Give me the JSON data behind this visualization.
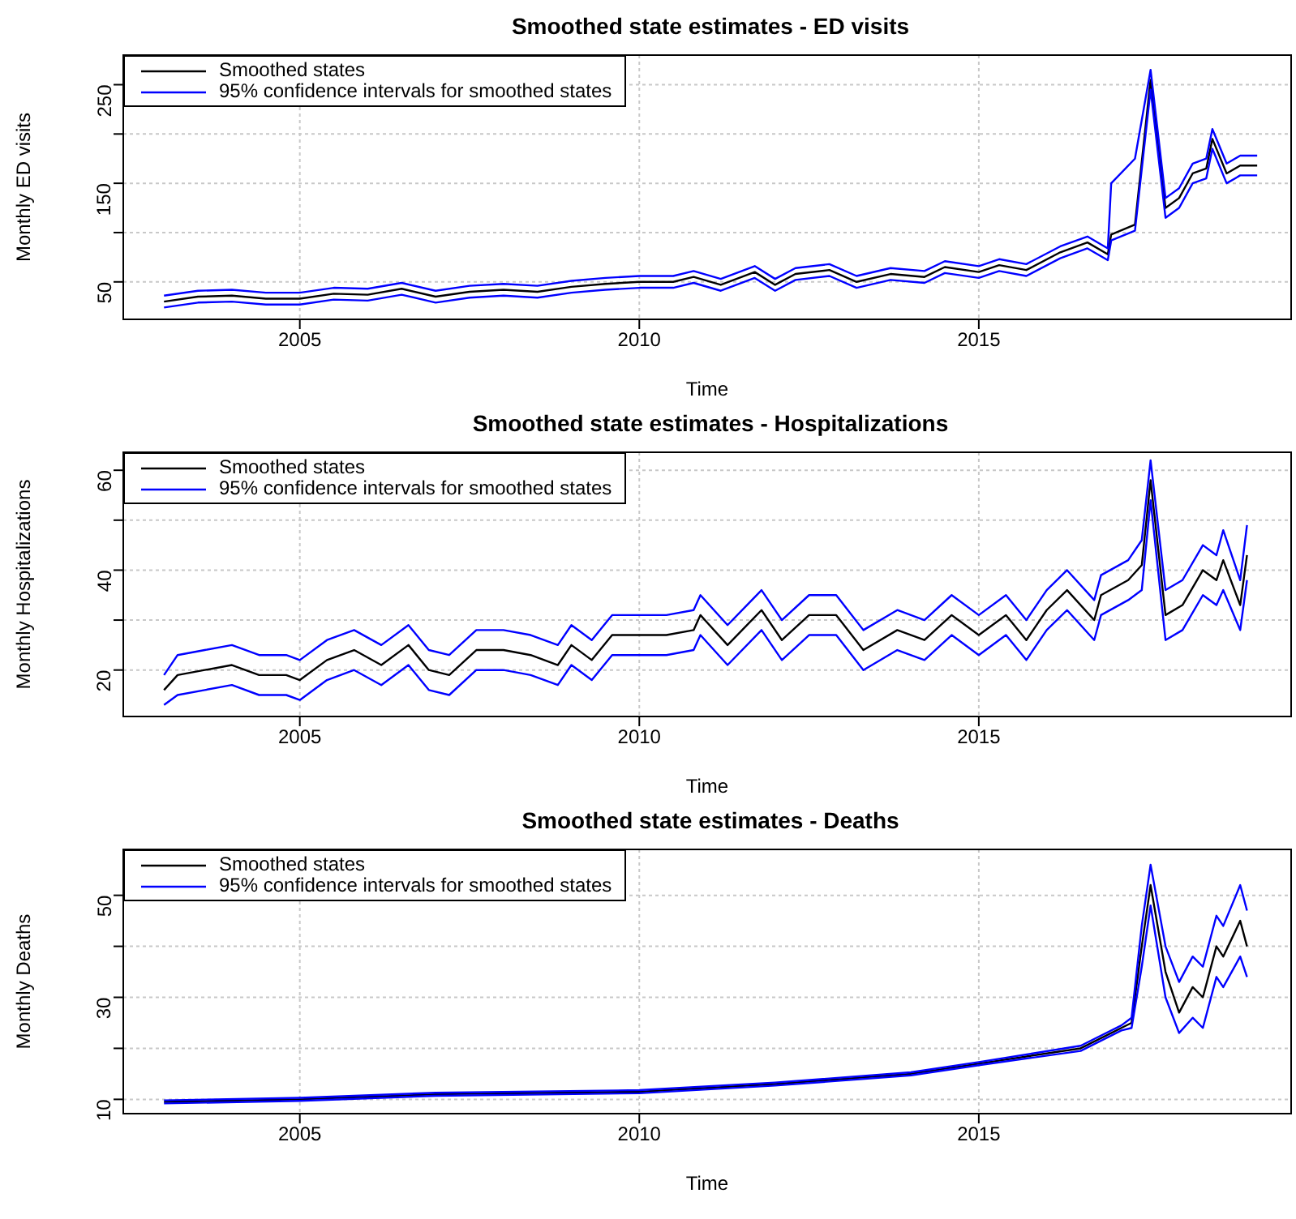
{
  "chart_data": [
    {
      "type": "line",
      "title": "Smoothed state estimates - ED visits",
      "xlabel": "Time",
      "ylabel": "Monthly ED visits",
      "legend": "top left",
      "grid": true,
      "line_style": "solid",
      "xlim": [
        2002.4,
        2019.6
      ],
      "xticks": [
        2005,
        2010,
        2015
      ],
      "ylim": [
        12,
        280
      ],
      "yticks": [
        50,
        {
          "value": 100,
          "label": null
        },
        150,
        {
          "value": 200,
          "label": null
        },
        250
      ],
      "x": [
        2003.0,
        2003.5,
        2004.0,
        2004.5,
        2005.0,
        2005.5,
        2006.0,
        2006.5,
        2007.0,
        2007.5,
        2008.0,
        2008.5,
        2009.0,
        2009.5,
        2010.0,
        2010.5,
        2010.8,
        2011.2,
        2011.7,
        2012.0,
        2012.3,
        2012.8,
        2013.2,
        2013.7,
        2014.2,
        2014.5,
        2015.0,
        2015.3,
        2015.7,
        2016.2,
        2016.6,
        2016.9,
        2016.95,
        2017.3,
        2017.53,
        2017.75,
        2017.95,
        2018.15,
        2018.35,
        2018.44,
        2018.65,
        2018.85,
        2019.1
      ],
      "series": [
        {
          "name": "Smoothed states",
          "color": "#000000",
          "values": [
            30,
            35,
            36,
            33,
            33,
            38,
            37,
            43,
            35,
            40,
            42,
            40,
            45,
            48,
            50,
            50,
            55,
            47,
            60,
            47,
            58,
            62,
            50,
            58,
            55,
            65,
            60,
            67,
            62,
            80,
            90,
            78,
            98,
            108,
            255,
            125,
            135,
            160,
            165,
            195,
            160,
            168,
            168
          ]
        },
        {
          "name": "95% confidence intervals for smoothed states",
          "color": "#0000ff",
          "values": [
            36,
            41,
            42,
            39,
            39,
            44,
            43,
            49,
            41,
            46,
            48,
            46,
            51,
            54,
            56,
            56,
            61,
            53,
            66,
            53,
            64,
            68,
            56,
            64,
            61,
            71,
            66,
            73,
            68,
            86,
            96,
            84,
            150,
            175,
            265,
            135,
            145,
            170,
            175,
            205,
            170,
            178,
            178
          ]
        },
        {
          "color": "#0000ff",
          "values": [
            24,
            29,
            30,
            27,
            27,
            32,
            31,
            37,
            29,
            34,
            36,
            34,
            39,
            42,
            44,
            44,
            49,
            41,
            54,
            41,
            52,
            56,
            44,
            52,
            49,
            59,
            54,
            61,
            56,
            74,
            84,
            72,
            92,
            102,
            245,
            115,
            125,
            150,
            155,
            185,
            150,
            158,
            158
          ]
        }
      ]
    },
    {
      "type": "line",
      "title": "Smoothed state estimates - Hospitalizations",
      "xlabel": "Time",
      "ylabel": "Monthly Hospitalizations",
      "legend": "top left",
      "grid": true,
      "line_style": "solid",
      "xlim": [
        2002.4,
        2019.6
      ],
      "xticks": [
        2005,
        2010,
        2015
      ],
      "ylim": [
        10.7,
        63.6
      ],
      "yticks": [
        20,
        {
          "value": 30,
          "label": null
        },
        40,
        {
          "value": 50,
          "label": null
        },
        60
      ],
      "x": [
        2003.0,
        2003.2,
        2003.6,
        2004.0,
        2004.4,
        2004.8,
        2005.0,
        2005.4,
        2005.8,
        2006.2,
        2006.6,
        2006.9,
        2007.2,
        2007.6,
        2008.0,
        2008.4,
        2008.8,
        2009.0,
        2009.3,
        2009.6,
        2010.0,
        2010.4,
        2010.8,
        2010.9,
        2011.3,
        2011.8,
        2012.1,
        2012.5,
        2012.9,
        2013.3,
        2013.8,
        2014.2,
        2014.6,
        2015.0,
        2015.4,
        2015.7,
        2016.0,
        2016.3,
        2016.7,
        2016.8,
        2017.2,
        2017.4,
        2017.53,
        2017.75,
        2018.0,
        2018.3,
        2018.5,
        2018.6,
        2018.85,
        2018.95
      ],
      "series": [
        {
          "name": "Smoothed states",
          "color": "#000000",
          "values": [
            16,
            19,
            20,
            21,
            19,
            19,
            18,
            22,
            24,
            21,
            25,
            20,
            19,
            24,
            24,
            23,
            21,
            25,
            22,
            27,
            27,
            27,
            28,
            31,
            25,
            32,
            26,
            31,
            31,
            24,
            28,
            26,
            31,
            27,
            31,
            26,
            32,
            36,
            30,
            35,
            38,
            41,
            58,
            31,
            33,
            40,
            38,
            42,
            33,
            43
          ]
        },
        {
          "name": "95% confidence intervals for smoothed states",
          "color": "#0000ff",
          "values": [
            19,
            23,
            24,
            25,
            23,
            23,
            22,
            26,
            28,
            25,
            29,
            24,
            23,
            28,
            28,
            27,
            25,
            29,
            26,
            31,
            31,
            31,
            32,
            35,
            29,
            36,
            30,
            35,
            35,
            28,
            32,
            30,
            35,
            31,
            35,
            30,
            36,
            40,
            34,
            39,
            42,
            46,
            62,
            36,
            38,
            45,
            43,
            48,
            38,
            49
          ]
        },
        {
          "color": "#0000ff",
          "values": [
            13,
            15,
            16,
            17,
            15,
            15,
            14,
            18,
            20,
            17,
            21,
            16,
            15,
            20,
            20,
            19,
            17,
            21,
            18,
            23,
            23,
            23,
            24,
            27,
            21,
            28,
            22,
            27,
            27,
            20,
            24,
            22,
            27,
            23,
            27,
            22,
            28,
            32,
            26,
            31,
            34,
            36,
            54,
            26,
            28,
            35,
            33,
            36,
            28,
            38
          ]
        }
      ]
    },
    {
      "type": "line",
      "title": "Smoothed state estimates - Deaths",
      "xlabel": "Time",
      "ylabel": "Monthly Deaths",
      "legend": "top left",
      "grid": true,
      "line_style": "solid",
      "xlim": [
        2002.4,
        2019.6
      ],
      "xticks": [
        2005,
        2010,
        2015
      ],
      "ylim": [
        7.2,
        59
      ],
      "yticks": [
        10,
        {
          "value": 20,
          "label": null
        },
        30,
        {
          "value": 40,
          "label": null
        },
        50
      ],
      "x": [
        2003.0,
        2005.0,
        2007.0,
        2010.0,
        2012.0,
        2014.0,
        2015.0,
        2016.5,
        2017.1,
        2017.25,
        2017.4,
        2017.53,
        2017.75,
        2017.95,
        2018.15,
        2018.3,
        2018.5,
        2018.6,
        2018.85,
        2018.95
      ],
      "series": [
        {
          "name": "Smoothed states",
          "color": "#000000",
          "values": [
            9.5,
            10,
            11,
            11.5,
            13,
            15,
            17,
            20,
            24,
            25,
            40,
            52,
            35,
            27,
            32,
            30,
            40,
            38,
            45,
            40
          ]
        },
        {
          "name": "95% confidence intervals for smoothed states",
          "color": "#0000ff",
          "values": [
            9.8,
            10.3,
            11.3,
            11.8,
            13.3,
            15.3,
            17.3,
            20.5,
            24.5,
            26,
            44,
            56,
            40,
            33,
            38,
            36,
            46,
            44,
            52,
            47
          ]
        },
        {
          "color": "#0000ff",
          "values": [
            9.2,
            9.7,
            10.7,
            11.2,
            12.7,
            14.7,
            16.7,
            19.5,
            23.5,
            24,
            36,
            48,
            30,
            23,
            26,
            24,
            34,
            32,
            38,
            34
          ]
        }
      ]
    }
  ]
}
